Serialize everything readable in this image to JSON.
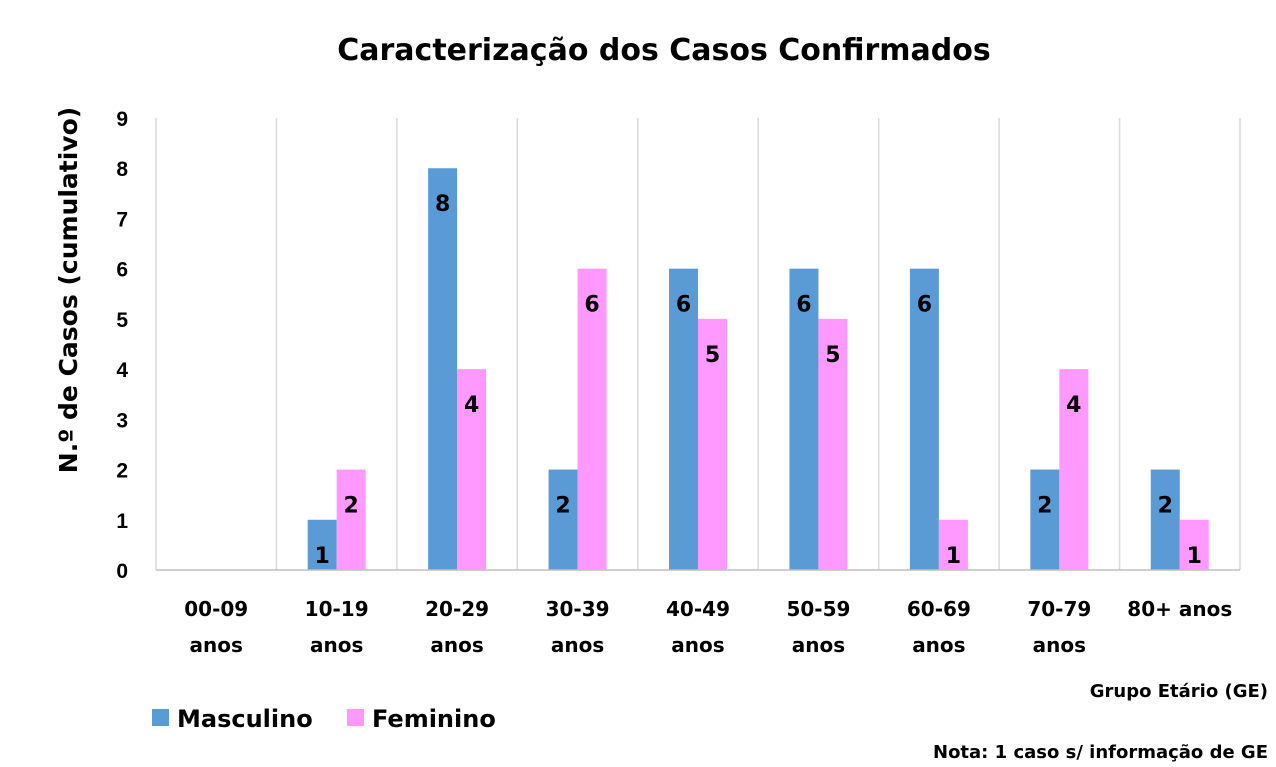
{
  "chart_data": {
    "type": "bar",
    "title": "Caracterização dos Casos Confirmados",
    "ylabel": "N.º de Casos (cumulativo)",
    "xlabel": "Grupo Etário (GE)",
    "note": "Nota: 1 caso s/ informação de GE",
    "categories": [
      [
        "00-09",
        "anos"
      ],
      [
        "10-19",
        "anos"
      ],
      [
        "20-29",
        "anos"
      ],
      [
        "30-39",
        "anos"
      ],
      [
        "40-49",
        "anos"
      ],
      [
        "50-59",
        "anos"
      ],
      [
        "60-69",
        "anos"
      ],
      [
        "70-79",
        "anos"
      ],
      [
        "80+ anos"
      ]
    ],
    "series": [
      {
        "name": "Masculino",
        "color": "#5b9bd5",
        "values": [
          0,
          1,
          8,
          2,
          6,
          6,
          6,
          2,
          2
        ]
      },
      {
        "name": "Feminino",
        "color": "#ff99ff",
        "values": [
          0,
          2,
          4,
          6,
          5,
          5,
          1,
          4,
          1
        ]
      }
    ],
    "ylim": [
      0,
      9
    ],
    "yticks": [
      0,
      1,
      2,
      3,
      4,
      5,
      6,
      7,
      8,
      9
    ],
    "grid": "vertical separators between categories",
    "legend": "bottom-left",
    "data_labels": true
  }
}
